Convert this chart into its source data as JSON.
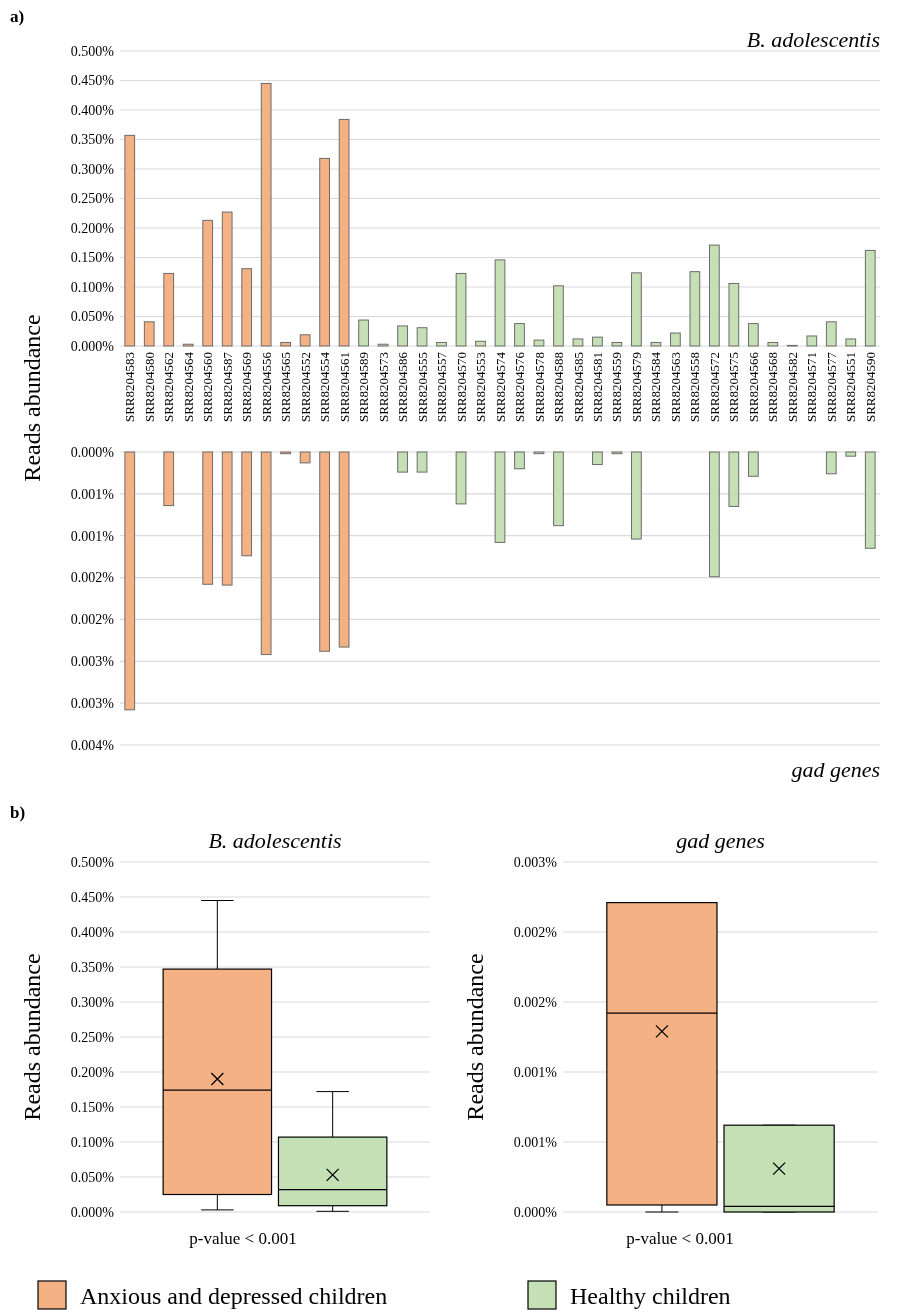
{
  "chart_data": [
    {
      "type": "bar",
      "title": "B. adolescentis",
      "ylabel": "Reads abundance",
      "annotations": [
        "a)"
      ],
      "categories": [
        "SRR8204583",
        "SRR8204580",
        "SRR8204562",
        "SRR8204564",
        "SRR8204560",
        "SRR8204587",
        "SRR8204569",
        "SRR8204556",
        "SRR8204565",
        "SRR8204552",
        "SRR8204554",
        "SRR8204561",
        "SRR8204589",
        "SRR8204573",
        "SRR8204586",
        "SRR8204555",
        "SRR8204557",
        "SRR8204570",
        "SRR8204553",
        "SRR8204574",
        "SRR8204576",
        "SRR8204578",
        "SRR8204588",
        "SRR8204585",
        "SRR8204581",
        "SRR8204559",
        "SRR8204579",
        "SRR8204584",
        "SRR8204563",
        "SRR8204558",
        "SRR8204572",
        "SRR8204575",
        "SRR8204566",
        "SRR8204568",
        "SRR8204582",
        "SRR8204571",
        "SRR8204577",
        "SRR8204551",
        "SRR8204590"
      ],
      "series": [
        {
          "color": "#f4b183",
          "values": [
            0.357,
            0.041,
            0.123,
            0.003,
            0.213,
            0.227,
            0.131,
            0.445,
            0.006,
            0.019,
            0.318,
            0.384,
            null,
            null,
            null,
            null,
            null,
            null,
            null,
            null,
            null,
            null,
            null,
            null,
            null,
            null,
            null,
            null,
            null,
            null,
            null,
            null,
            null,
            null,
            null,
            null,
            null,
            null,
            null
          ]
        },
        {
          "color": "#c5e0b4",
          "values": [
            null,
            null,
            null,
            null,
            null,
            null,
            null,
            null,
            null,
            null,
            null,
            null,
            0.044,
            0.003,
            0.034,
            0.031,
            0.006,
            0.123,
            0.008,
            0.146,
            0.038,
            0.01,
            0.102,
            0.012,
            0.015,
            0.006,
            0.124,
            0.006,
            0.022,
            0.126,
            0.171,
            0.106,
            0.038,
            0.006,
            0.001,
            0.017,
            0.041,
            0.012,
            0.162
          ]
        }
      ],
      "ylim": [
        0,
        0.5
      ],
      "yticks": [
        {
          "value": 0,
          "label": "0.000%"
        },
        {
          "value": 0.05,
          "label": "0.050%"
        },
        {
          "value": 0.1,
          "label": "0.100%"
        },
        {
          "value": 0.15,
          "label": "0.150%"
        },
        {
          "value": 0.2,
          "label": "0.200%"
        },
        {
          "value": 0.25,
          "label": "0.250%"
        },
        {
          "value": 0.3,
          "label": "0.300%"
        },
        {
          "value": 0.35,
          "label": "0.350%"
        },
        {
          "value": 0.4,
          "label": "0.400%"
        },
        {
          "value": 0.45,
          "label": "0.450%"
        },
        {
          "value": 0.5,
          "label": "0.500%"
        }
      ],
      "grid": "y"
    },
    {
      "type": "bar",
      "title": "gad genes",
      "tick_labels": "y",
      "categories": [
        null,
        null,
        null,
        null,
        null,
        null,
        null,
        null,
        null,
        null,
        null,
        null,
        null,
        null,
        null,
        null,
        null,
        null,
        null,
        null,
        null,
        null,
        null,
        null,
        null,
        null,
        null,
        null,
        null,
        null,
        null,
        null,
        null,
        null,
        null,
        null,
        null,
        null,
        null
      ],
      "series": [
        {
          "color": "#f4b183",
          "values": [
            0.00308,
            0,
            0.00064,
            0,
            0.00158,
            0.00159,
            0.00124,
            0.00242,
            2e-05,
            0.00013,
            0.00238,
            0.00233,
            null,
            null,
            null,
            null,
            null,
            null,
            null,
            null,
            null,
            null,
            null,
            null,
            null,
            null,
            null,
            null,
            null,
            null,
            null,
            null,
            null,
            null,
            null,
            null,
            null,
            null,
            null
          ]
        },
        {
          "color": "#c5e0b4",
          "values": [
            null,
            null,
            null,
            null,
            null,
            null,
            null,
            null,
            null,
            null,
            null,
            null,
            0,
            0,
            0.00024,
            0.00024,
            0,
            0.00062,
            0,
            0.00108,
            0.0002,
            2e-05,
            0.00088,
            0,
            0.00015,
            2e-05,
            0.00104,
            0,
            0,
            0,
            0.00149,
            0.00065,
            0.00029,
            0,
            0,
            0,
            0.00026,
            5e-05,
            0.00115
          ]
        }
      ],
      "ylim": [
        0.0035,
        0
      ],
      "yticks": [
        {
          "value": 0,
          "label": "0.000%"
        },
        {
          "value": 0.0005,
          "label": "0.001%"
        },
        {
          "value": 0.001,
          "label": "0.001%"
        },
        {
          "value": 0.0015,
          "label": "0.002%"
        },
        {
          "value": 0.002,
          "label": "0.002%"
        },
        {
          "value": 0.0025,
          "label": "0.003%"
        },
        {
          "value": 0.003,
          "label": "0.003%"
        },
        {
          "value": 0.0035,
          "label": "0.004%"
        }
      ],
      "grid": "y"
    },
    {
      "type": "box",
      "title": "B. adolescentis",
      "ylabel": "Reads abundance",
      "annotations": [
        "b)",
        "p-value < 0.001"
      ],
      "categories": [
        null
      ],
      "series": [
        {
          "color": "#f4b183",
          "boxes": [
            {
              "low": 0.003,
              "q1": 0.025,
              "median": 0.174,
              "q3": 0.347,
              "high": 0.445,
              "mean": 0.19
            }
          ]
        },
        {
          "color": "#c5e0b4",
          "boxes": [
            {
              "low": 0.001,
              "q1": 0.009,
              "median": 0.032,
              "q3": 0.107,
              "high": 0.172,
              "mean": 0.053
            }
          ]
        }
      ],
      "ylim": [
        0,
        0.5
      ],
      "yticks": [
        {
          "value": 0,
          "label": "0.000%"
        },
        {
          "value": 0.05,
          "label": "0.050%"
        },
        {
          "value": 0.1,
          "label": "0.100%"
        },
        {
          "value": 0.15,
          "label": "0.150%"
        },
        {
          "value": 0.2,
          "label": "0.200%"
        },
        {
          "value": 0.25,
          "label": "0.250%"
        },
        {
          "value": 0.3,
          "label": "0.300%"
        },
        {
          "value": 0.35,
          "label": "0.350%"
        },
        {
          "value": 0.4,
          "label": "0.400%"
        },
        {
          "value": 0.45,
          "label": "0.450%"
        },
        {
          "value": 0.5,
          "label": "0.500%"
        }
      ],
      "grid": "y",
      "marker": "cross"
    },
    {
      "type": "box",
      "title": "gad genes",
      "ylabel": "Reads abundance",
      "annotations": [
        "p-value < 0.001"
      ],
      "categories": [
        null
      ],
      "legend": "bottom",
      "series": [
        {
          "name": "Anxious and depressed children",
          "color": "#f4b183",
          "boxes": [
            {
              "low": 0,
              "q1": 5e-05,
              "median": 0.00142,
              "q3": 0.00221,
              "high": 0.00221,
              "mean": 0.00129
            }
          ]
        },
        {
          "name": "Healthy children",
          "color": "#c5e0b4",
          "boxes": [
            {
              "low": 0,
              "q1": 0,
              "median": 4e-05,
              "q3": 0.00062,
              "high": 0.00062,
              "mean": 0.00031
            }
          ]
        }
      ],
      "ylim": [
        0,
        0.0025
      ],
      "yticks": [
        {
          "value": 0,
          "label": "0.000%"
        },
        {
          "value": 0.0005,
          "label": "0.001%"
        },
        {
          "value": 0.001,
          "label": "0.001%"
        },
        {
          "value": 0.0015,
          "label": "0.002%"
        },
        {
          "value": 0.002,
          "label": "0.002%"
        },
        {
          "value": 0.0025,
          "label": "0.003%"
        }
      ],
      "grid": "y",
      "marker": "cross"
    }
  ]
}
